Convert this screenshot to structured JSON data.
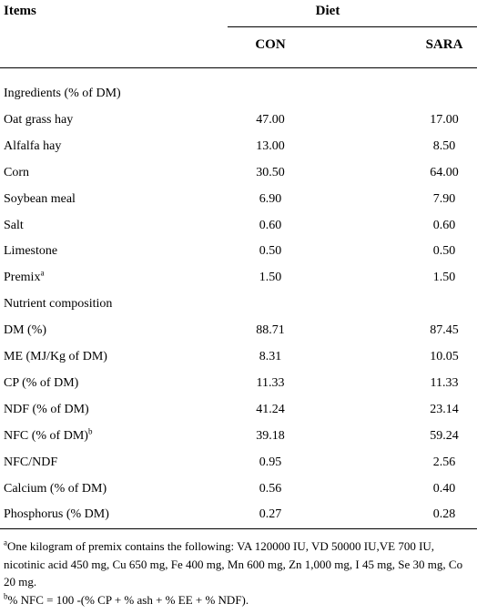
{
  "header": {
    "items": "Items",
    "diet": "Diet",
    "columns": [
      "CON",
      "SARA"
    ]
  },
  "rows": [
    {
      "label": "Ingredients (% of DM)"
    },
    {
      "label": "Oat grass hay",
      "values": [
        "47.00",
        "17.00"
      ]
    },
    {
      "label": "Alfalfa hay",
      "values": [
        "13.00",
        "8.50"
      ]
    },
    {
      "label": "Corn",
      "values": [
        "30.50",
        "64.00"
      ]
    },
    {
      "label": "Soybean meal",
      "values": [
        "6.90",
        "7.90"
      ]
    },
    {
      "label": "Salt",
      "values": [
        "0.60",
        "0.60"
      ]
    },
    {
      "label": "Limestone",
      "values": [
        "0.50",
        "0.50"
      ]
    },
    {
      "label": "Premix",
      "note": "a",
      "values": [
        "1.50",
        "1.50"
      ]
    },
    {
      "label": "Nutrient composition"
    },
    {
      "label": "DM (%)",
      "values": [
        "88.71",
        "87.45"
      ]
    },
    {
      "label": "ME (MJ/Kg of DM)",
      "values": [
        "8.31",
        "10.05"
      ]
    },
    {
      "label": "CP (% of DM)",
      "values": [
        "11.33",
        "11.33"
      ]
    },
    {
      "label": "NDF (% of DM)",
      "values": [
        "41.24",
        "23.14"
      ]
    },
    {
      "label": "NFC (% of DM)",
      "note": "b",
      "values": [
        "39.18",
        "59.24"
      ]
    },
    {
      "label": "NFC/NDF",
      "values": [
        "0.95",
        "2.56"
      ]
    },
    {
      "label": "Calcium (% of DM)",
      "values": [
        "0.56",
        "0.40"
      ]
    },
    {
      "label": "Phosphorus (% DM)",
      "values": [
        "0.27",
        "0.28"
      ]
    }
  ],
  "footnotes": [
    {
      "marker": "a",
      "text": "One kilogram of premix contains the following: VA 120000 IU, VD 50000 IU,VE 700 IU, nicotinic acid 450 mg, Cu 650 mg, Fe 400 mg, Mn 600 mg, Zn 1,000 mg, I 45 mg, Se 30 mg, Co 20 mg."
    },
    {
      "marker": "b",
      "text": "% NFC = 100 -(% CP + % ash + % EE + % NDF)."
    }
  ]
}
